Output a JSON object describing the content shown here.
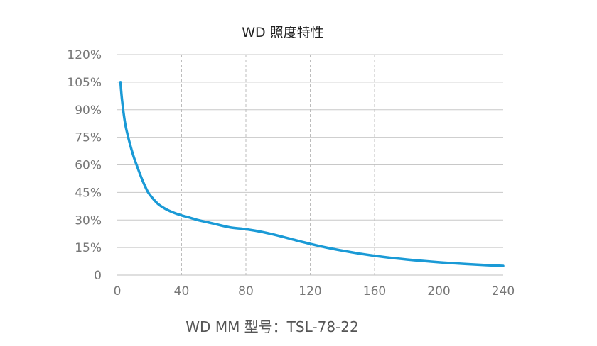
{
  "chart_data": {
    "type": "line",
    "title": "WD 照度特性",
    "caption": "WD MM 型号：TSL-78-22",
    "xlabel": "",
    "ylabel": "",
    "xlim": [
      0,
      240
    ],
    "ylim": [
      0,
      120
    ],
    "x_ticks": [
      0,
      40,
      80,
      120,
      160,
      200,
      240
    ],
    "x_tick_labels": [
      "0",
      "40",
      "80",
      "120",
      "160",
      "200",
      "240"
    ],
    "y_ticks": [
      0,
      15,
      30,
      45,
      60,
      75,
      90,
      105,
      120
    ],
    "y_tick_labels": [
      "0",
      "15%",
      "30%",
      "45%",
      "60%",
      "75%",
      "90%",
      "105%",
      "120%"
    ],
    "grid": {
      "horizontal": "solid",
      "vertical": "dashed"
    },
    "legend": "none",
    "series": [
      {
        "color": "#1a9ad6",
        "x": [
          2,
          3,
          5,
          8,
          10,
          12,
          15,
          18,
          20,
          25,
          30,
          35,
          40,
          45,
          50,
          55,
          60,
          70,
          80,
          90,
          100,
          110,
          120,
          130,
          140,
          150,
          160,
          170,
          180,
          190,
          200,
          210,
          220,
          230,
          240
        ],
        "y": [
          105,
          95,
          82,
          71,
          65,
          60,
          53,
          47,
          44,
          39,
          36,
          34,
          32.5,
          31.3,
          30,
          29,
          28,
          26,
          25,
          23.5,
          21.5,
          19.2,
          17,
          15,
          13.3,
          11.8,
          10.5,
          9.4,
          8.5,
          7.7,
          7,
          6.4,
          5.9,
          5.4,
          5
        ]
      }
    ]
  }
}
